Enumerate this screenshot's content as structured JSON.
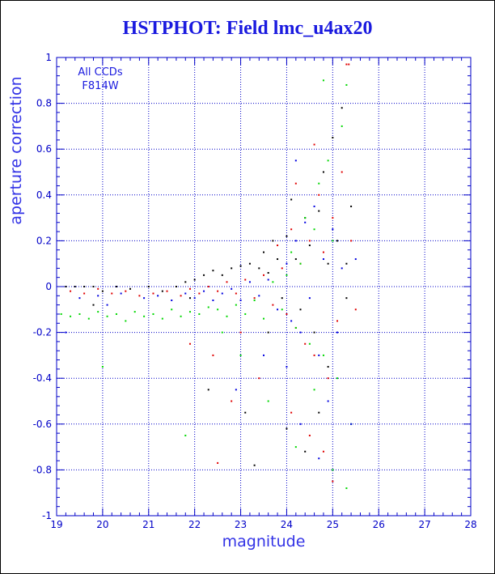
{
  "title": "HSTPHOT: Field lmc_u4ax20",
  "colors": {
    "axis": "#0000c8",
    "grid": "#0000c8",
    "title": "#1a1adf",
    "series": [
      "#000000",
      "#e00000",
      "#00d800",
      "#0000e0"
    ]
  },
  "chart_data": {
    "type": "scatter",
    "title": "HSTPHOT: Field lmc_u4ax20",
    "xlabel": "magnitude",
    "ylabel": "aperture correction",
    "xlim": [
      19,
      28
    ],
    "ylim": [
      -1,
      1
    ],
    "x_ticks": [
      "19",
      "20",
      "21",
      "22",
      "23",
      "24",
      "25",
      "26",
      "27",
      "28"
    ],
    "y_ticks": [
      "-1",
      "-0.8",
      "-0.6",
      "-0.4",
      "-0.2",
      "0",
      "0.2",
      "0.4",
      "0.6",
      "0.8",
      "1"
    ],
    "grid": true,
    "annotations": [
      "All CCDs",
      "F814W"
    ],
    "series": [
      {
        "color": "#000000",
        "points": [
          [
            19.2,
            0.0
          ],
          [
            19.4,
            0.0
          ],
          [
            19.6,
            0.0
          ],
          [
            19.8,
            0.0
          ],
          [
            20.0,
            -0.02
          ],
          [
            20.3,
            0.0
          ],
          [
            20.6,
            -0.01
          ],
          [
            21.0,
            0.0
          ],
          [
            21.3,
            -0.02
          ],
          [
            21.6,
            0.0
          ],
          [
            21.8,
            0.02
          ],
          [
            22.0,
            0.03
          ],
          [
            22.2,
            0.05
          ],
          [
            22.4,
            0.07
          ],
          [
            22.6,
            0.05
          ],
          [
            22.8,
            0.08
          ],
          [
            23.0,
            0.09
          ],
          [
            23.2,
            0.1
          ],
          [
            23.4,
            0.08
          ],
          [
            23.5,
            0.15
          ],
          [
            23.6,
            0.06
          ],
          [
            23.7,
            0.2
          ],
          [
            23.8,
            0.12
          ],
          [
            23.9,
            -0.05
          ],
          [
            24.0,
            0.22
          ],
          [
            24.1,
            0.38
          ],
          [
            24.2,
            0.12
          ],
          [
            24.3,
            -0.1
          ],
          [
            24.4,
            0.3
          ],
          [
            24.5,
            0.18
          ],
          [
            24.6,
            -0.2
          ],
          [
            24.7,
            0.33
          ],
          [
            24.8,
            0.5
          ],
          [
            24.9,
            0.1
          ],
          [
            25.0,
            0.65
          ],
          [
            25.1,
            0.2
          ],
          [
            25.2,
            0.78
          ],
          [
            25.3,
            0.1
          ],
          [
            25.4,
            0.35
          ],
          [
            23.1,
            -0.55
          ],
          [
            23.3,
            -0.78
          ],
          [
            24.0,
            -0.62
          ],
          [
            24.4,
            -0.72
          ],
          [
            24.7,
            -0.55
          ],
          [
            22.3,
            -0.45
          ],
          [
            19.8,
            -0.08
          ],
          [
            21.9,
            -0.05
          ],
          [
            23.6,
            -0.2
          ],
          [
            24.9,
            -0.35
          ],
          [
            25.3,
            -0.05
          ]
        ]
      },
      {
        "color": "#e00000",
        "points": [
          [
            19.3,
            -0.02
          ],
          [
            19.6,
            -0.03
          ],
          [
            19.9,
            -0.01
          ],
          [
            20.2,
            -0.03
          ],
          [
            20.5,
            -0.02
          ],
          [
            20.8,
            -0.04
          ],
          [
            21.1,
            -0.03
          ],
          [
            21.4,
            -0.02
          ],
          [
            21.7,
            -0.04
          ],
          [
            21.9,
            -0.01
          ],
          [
            22.1,
            -0.03
          ],
          [
            22.3,
            0.0
          ],
          [
            22.5,
            -0.02
          ],
          [
            22.7,
            0.02
          ],
          [
            22.9,
            -0.03
          ],
          [
            23.1,
            0.03
          ],
          [
            23.3,
            -0.05
          ],
          [
            23.5,
            0.05
          ],
          [
            23.7,
            -0.08
          ],
          [
            23.9,
            0.08
          ],
          [
            24.0,
            -0.12
          ],
          [
            24.1,
            0.25
          ],
          [
            24.2,
            -0.18
          ],
          [
            24.3,
            0.1
          ],
          [
            24.4,
            -0.25
          ],
          [
            24.5,
            0.2
          ],
          [
            24.6,
            -0.3
          ],
          [
            24.7,
            0.4
          ],
          [
            24.8,
            0.15
          ],
          [
            24.9,
            -0.4
          ],
          [
            25.0,
            0.3
          ],
          [
            25.1,
            -0.15
          ],
          [
            25.2,
            0.5
          ],
          [
            25.3,
            0.97
          ],
          [
            25.35,
            0.97
          ],
          [
            25.4,
            0.2
          ],
          [
            25.5,
            -0.1
          ],
          [
            22.4,
            -0.3
          ],
          [
            22.8,
            -0.5
          ],
          [
            23.0,
            -0.2
          ],
          [
            23.4,
            -0.4
          ],
          [
            24.1,
            -0.55
          ],
          [
            24.5,
            -0.65
          ],
          [
            24.8,
            -0.72
          ],
          [
            25.0,
            -0.85
          ],
          [
            22.5,
            -0.77
          ],
          [
            21.9,
            -0.25
          ],
          [
            23.8,
            0.18
          ],
          [
            24.2,
            0.45
          ],
          [
            24.6,
            0.62
          ]
        ]
      },
      {
        "color": "#00d800",
        "points": [
          [
            19.1,
            -0.12
          ],
          [
            19.3,
            -0.13
          ],
          [
            19.5,
            -0.12
          ],
          [
            19.7,
            -0.14
          ],
          [
            19.9,
            -0.11
          ],
          [
            20.1,
            -0.13
          ],
          [
            20.3,
            -0.12
          ],
          [
            20.5,
            -0.15
          ],
          [
            20.7,
            -0.11
          ],
          [
            20.9,
            -0.13
          ],
          [
            21.1,
            -0.12
          ],
          [
            21.3,
            -0.14
          ],
          [
            21.5,
            -0.1
          ],
          [
            21.7,
            -0.13
          ],
          [
            21.9,
            -0.11
          ],
          [
            22.1,
            -0.12
          ],
          [
            22.3,
            -0.09
          ],
          [
            22.5,
            -0.1
          ],
          [
            22.7,
            -0.13
          ],
          [
            22.9,
            -0.08
          ],
          [
            23.1,
            -0.12
          ],
          [
            23.3,
            -0.06
          ],
          [
            23.5,
            -0.14
          ],
          [
            23.7,
            0.02
          ],
          [
            23.9,
            -0.1
          ],
          [
            24.0,
            0.05
          ],
          [
            24.1,
            0.15
          ],
          [
            24.2,
            -0.18
          ],
          [
            24.3,
            0.1
          ],
          [
            24.4,
            0.3
          ],
          [
            24.5,
            -0.25
          ],
          [
            24.6,
            0.25
          ],
          [
            24.7,
            0.45
          ],
          [
            24.8,
            -0.3
          ],
          [
            24.9,
            0.55
          ],
          [
            25.0,
            0.2
          ],
          [
            25.1,
            -0.4
          ],
          [
            25.2,
            0.7
          ],
          [
            25.3,
            0.88
          ],
          [
            25.4,
            -0.6
          ],
          [
            20.0,
            -0.35
          ],
          [
            21.8,
            -0.65
          ],
          [
            22.6,
            -0.2
          ],
          [
            23.0,
            -0.3
          ],
          [
            23.6,
            -0.5
          ],
          [
            24.2,
            -0.7
          ],
          [
            24.6,
            -0.45
          ],
          [
            25.0,
            -0.8
          ],
          [
            25.3,
            -0.88
          ],
          [
            24.8,
            0.9
          ]
        ]
      },
      {
        "color": "#0000e0",
        "points": [
          [
            19.5,
            -0.05
          ],
          [
            19.9,
            -0.04
          ],
          [
            20.4,
            -0.03
          ],
          [
            20.9,
            -0.05
          ],
          [
            21.2,
            -0.04
          ],
          [
            21.5,
            -0.06
          ],
          [
            21.8,
            -0.03
          ],
          [
            22.0,
            -0.05
          ],
          [
            22.2,
            -0.02
          ],
          [
            22.4,
            -0.06
          ],
          [
            22.6,
            -0.03
          ],
          [
            22.8,
            -0.01
          ],
          [
            23.0,
            -0.06
          ],
          [
            23.2,
            0.02
          ],
          [
            23.4,
            -0.04
          ],
          [
            23.6,
            0.03
          ],
          [
            23.8,
            -0.1
          ],
          [
            24.0,
            0.1
          ],
          [
            24.1,
            -0.15
          ],
          [
            24.2,
            0.2
          ],
          [
            24.3,
            -0.2
          ],
          [
            24.4,
            0.28
          ],
          [
            24.5,
            -0.05
          ],
          [
            24.6,
            0.35
          ],
          [
            24.7,
            -0.3
          ],
          [
            24.8,
            0.12
          ],
          [
            24.9,
            -0.5
          ],
          [
            25.0,
            0.25
          ],
          [
            25.1,
            -0.2
          ],
          [
            25.2,
            0.08
          ],
          [
            25.4,
            -0.6
          ],
          [
            25.5,
            0.12
          ],
          [
            22.9,
            -0.45
          ],
          [
            23.5,
            -0.3
          ],
          [
            24.3,
            -0.6
          ],
          [
            24.7,
            -0.75
          ],
          [
            24.2,
            0.55
          ],
          [
            19.2,
            -0.2
          ],
          [
            20.1,
            -0.08
          ],
          [
            24.0,
            -0.35
          ]
        ]
      }
    ]
  }
}
